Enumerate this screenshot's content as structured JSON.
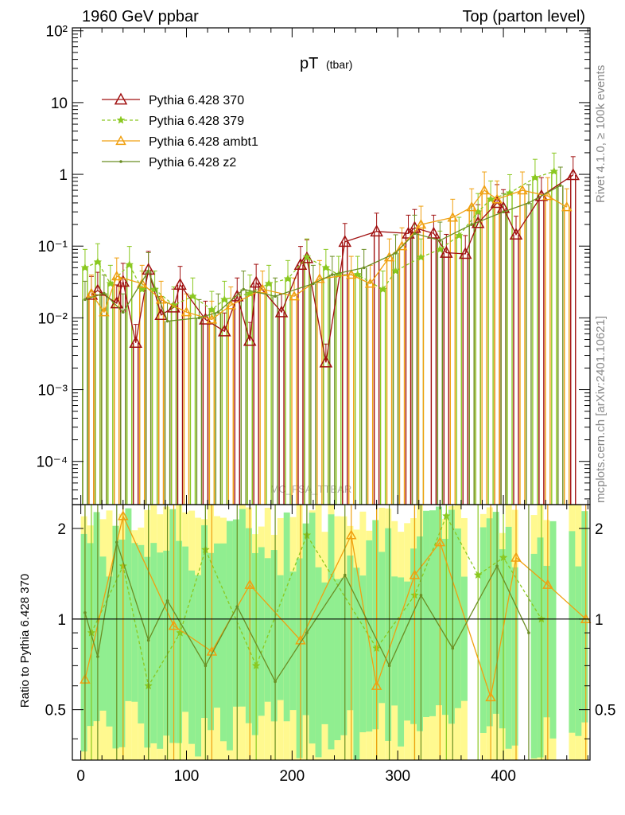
{
  "header": {
    "left": "1960 GeV ppbar",
    "right": "Top (parton level)"
  },
  "side_text": {
    "rivet": "Rivet 4.1.0, ≥ 100k events",
    "mcplots": "mcplots.cern.ch [arXiv:2401.10621]"
  },
  "chart_data": [
    {
      "type": "line",
      "title": "pT",
      "title_sub": "(tbar)",
      "watermark": "MC_FSA_TTBAR",
      "xlabel": "",
      "ylabel": "",
      "yscale": "log",
      "xlim": [
        -8,
        482
      ],
      "ylim": [
        2.5e-05,
        110
      ],
      "x_ticks": [
        "0",
        "100",
        "200",
        "300",
        "400"
      ],
      "y_ticks": [
        "10⁻⁴",
        "10⁻³",
        "10⁻²",
        "10⁻¹",
        "1",
        "10",
        "10²"
      ],
      "legend_position": "top-left",
      "colors": {
        "p370": "#a01010",
        "p379": "#8ac820",
        "ambt1": "#f0a010",
        "z2": "#6b8e23"
      },
      "series": [
        {
          "name": "Pythia 6.428 370",
          "x": [
            10,
            16,
            34,
            40,
            52,
            64,
            76,
            88,
            94,
            118,
            136,
            148,
            160,
            166,
            190,
            208,
            214,
            232,
            250,
            280,
            310,
            316,
            334,
            346,
            364,
            376,
            394,
            400,
            412,
            436,
            466
          ],
          "y": [
            0.021,
            0.024,
            0.016,
            0.032,
            0.0045,
            0.047,
            0.011,
            0.014,
            0.029,
            0.0095,
            0.0065,
            0.02,
            0.0048,
            0.031,
            0.012,
            0.055,
            0.068,
            0.0024,
            0.115,
            0.16,
            0.15,
            0.18,
            0.15,
            0.081,
            0.078,
            0.21,
            0.4,
            0.34,
            0.145,
            0.5,
            0.98
          ]
        },
        {
          "name": "Pythia 6.428 379",
          "x": [
            4,
            16,
            28,
            46,
            58,
            70,
            88,
            106,
            124,
            136,
            160,
            178,
            196,
            214,
            232,
            244,
            262,
            286,
            298,
            322,
            340,
            358,
            376,
            388,
            406,
            430,
            448
          ],
          "y": [
            0.05,
            0.06,
            0.03,
            0.055,
            0.025,
            0.025,
            0.015,
            0.02,
            0.013,
            0.018,
            0.022,
            0.03,
            0.035,
            0.07,
            0.05,
            0.04,
            0.04,
            0.025,
            0.045,
            0.07,
            0.09,
            0.14,
            0.3,
            0.45,
            0.55,
            0.9,
            1.1
          ]
        },
        {
          "name": "Pythia 6.428 ambt1",
          "x": [
            10,
            22,
            34,
            58,
            76,
            100,
            124,
            142,
            172,
            202,
            226,
            256,
            274,
            292,
            304,
            322,
            352,
            370,
            382,
            394,
            418,
            442,
            460
          ],
          "y": [
            0.022,
            0.012,
            0.038,
            0.03,
            0.018,
            0.012,
            0.0095,
            0.015,
            0.025,
            0.02,
            0.035,
            0.04,
            0.03,
            0.07,
            0.1,
            0.2,
            0.25,
            0.35,
            0.6,
            0.45,
            0.6,
            0.5,
            0.35
          ]
        },
        {
          "name": "Pythia 6.428 z2",
          "x": [
            4,
            22,
            40,
            64,
            82,
            112,
            130,
            154,
            184,
            220,
            238,
            268,
            298,
            316,
            340,
            370,
            400,
            424,
            454
          ],
          "y": [
            0.018,
            0.022,
            0.012,
            0.045,
            0.009,
            0.01,
            0.012,
            0.025,
            0.02,
            0.03,
            0.04,
            0.05,
            0.08,
            0.15,
            0.12,
            0.2,
            0.3,
            0.4,
            0.7
          ]
        }
      ]
    },
    {
      "type": "line",
      "title": "",
      "xlabel": "",
      "ylabel": "Ratio to Pythia 6.428 370",
      "yscale": "log",
      "xlim": [
        -8,
        482
      ],
      "ylim": [
        0.34,
        2.4
      ],
      "x_ticks": [
        "0",
        "100",
        "200",
        "300",
        "400"
      ],
      "y_ticks": [
        "0.5",
        "1",
        "2"
      ],
      "reference_line": 1,
      "series": [
        {
          "name": "Pythia 6.428 379",
          "x": [
            10,
            40,
            64,
            94,
            118,
            166,
            214,
            280,
            316,
            346,
            376,
            400,
            436
          ],
          "y": [
            0.9,
            1.5,
            0.6,
            0.9,
            1.7,
            0.7,
            1.9,
            0.8,
            1.2,
            2.2,
            1.4,
            1.6,
            1.0
          ]
        },
        {
          "name": "Pythia 6.428 ambt1",
          "x": [
            4,
            40,
            88,
            124,
            160,
            208,
            256,
            280,
            316,
            340,
            388,
            412,
            442,
            478
          ],
          "y": [
            0.63,
            2.2,
            0.95,
            0.78,
            1.3,
            0.85,
            1.9,
            0.6,
            1.4,
            1.8,
            0.55,
            1.6,
            1.3,
            1.0
          ]
        },
        {
          "name": "Pythia 6.428 z2",
          "x": [
            4,
            16,
            34,
            64,
            82,
            118,
            148,
            184,
            214,
            250,
            292,
            322,
            352,
            394,
            424
          ],
          "y": [
            1.05,
            0.75,
            1.8,
            0.85,
            1.15,
            0.7,
            1.1,
            0.62,
            0.9,
            1.4,
            0.7,
            1.2,
            0.8,
            1.5,
            0.9
          ]
        }
      ]
    }
  ]
}
